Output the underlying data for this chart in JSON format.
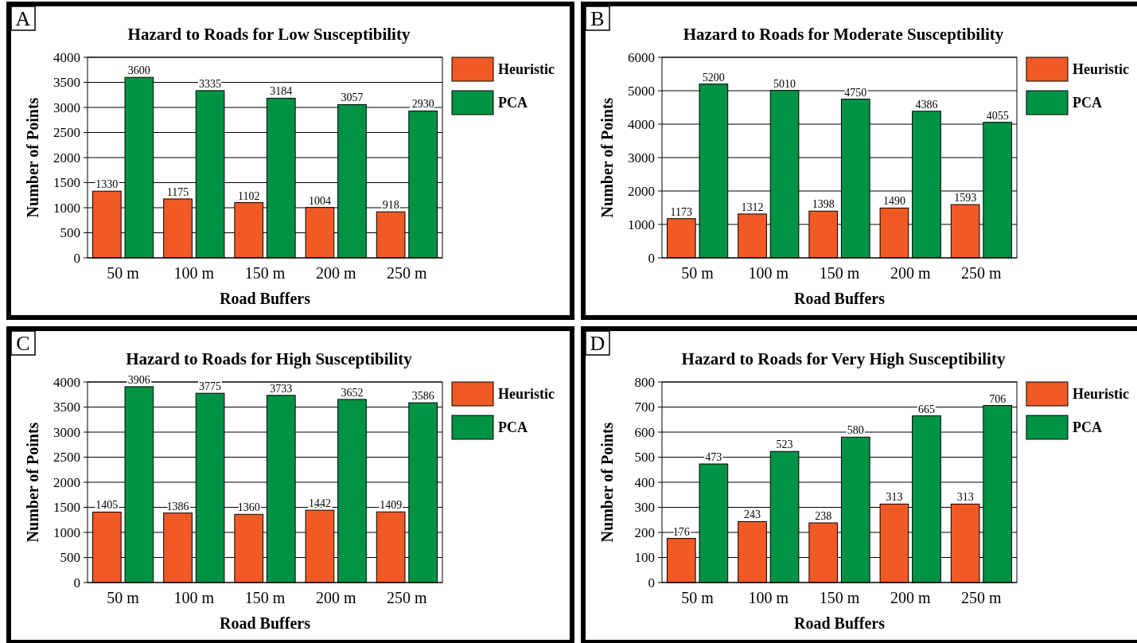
{
  "chart_data": [
    {
      "type": "bar",
      "title": "Hazard to Roads for Low Susceptibility",
      "xlabel": "Road Buffers",
      "ylabel": "Number of Points",
      "annotations": [
        "A"
      ],
      "categories": [
        "50 m",
        "100 m",
        "150 m",
        "200 m",
        "250 m"
      ],
      "series": [
        {
          "name": "Heuristic",
          "color": "#f15a24",
          "values": [
            1330,
            1175,
            1102,
            1004,
            918
          ]
        },
        {
          "name": "PCA",
          "color": "#009245",
          "values": [
            3600,
            3335,
            3184,
            3057,
            2930
          ]
        }
      ],
      "ylim": [
        0,
        4000
      ],
      "yticks": [
        0,
        500,
        1000,
        1500,
        2000,
        2500,
        3000,
        3500,
        4000
      ],
      "grid": "y",
      "legend": "top right",
      "data_labels": true
    },
    {
      "type": "bar",
      "title": "Hazard to Roads for Moderate Susceptibility",
      "xlabel": "Road Buffers",
      "ylabel": "Number of Points",
      "annotations": [
        "B"
      ],
      "categories": [
        "50 m",
        "100 m",
        "150 m",
        "200 m",
        "250 m"
      ],
      "series": [
        {
          "name": "Heuristic",
          "color": "#f15a24",
          "values": [
            1173,
            1312,
            1398,
            1490,
            1593
          ]
        },
        {
          "name": "PCA",
          "color": "#009245",
          "values": [
            5200,
            5010,
            4750,
            4386,
            4055
          ]
        }
      ],
      "ylim": [
        0,
        6000
      ],
      "yticks": [
        0,
        1000,
        2000,
        3000,
        4000,
        5000,
        6000
      ],
      "grid": "y",
      "legend": "top right",
      "data_labels": true
    },
    {
      "type": "bar",
      "title": "Hazard to Roads for High Susceptibility",
      "xlabel": "Road Buffers",
      "ylabel": "Number of Points",
      "annotations": [
        "C"
      ],
      "categories": [
        "50 m",
        "100 m",
        "150 m",
        "200 m",
        "250 m"
      ],
      "series": [
        {
          "name": "Heuristic",
          "color": "#f15a24",
          "values": [
            1405,
            1386,
            1360,
            1442,
            1409
          ]
        },
        {
          "name": "PCA",
          "color": "#009245",
          "values": [
            3906,
            3775,
            3733,
            3652,
            3586
          ]
        }
      ],
      "ylim": [
        0,
        4000
      ],
      "yticks": [
        0,
        500,
        1000,
        1500,
        2000,
        2500,
        3000,
        3500,
        4000
      ],
      "grid": "y",
      "legend": "top right",
      "data_labels": true
    },
    {
      "type": "bar",
      "title": "Hazard to Roads for Very High Susceptibility",
      "xlabel": "Road Buffers",
      "ylabel": "Number of Points",
      "annotations": [
        "D"
      ],
      "categories": [
        "50 m",
        "100 m",
        "150 m",
        "200 m",
        "250 m"
      ],
      "series": [
        {
          "name": "Heuristic",
          "color": "#f15a24",
          "values": [
            176,
            243,
            238,
            313,
            313
          ]
        },
        {
          "name": "PCA",
          "color": "#009245",
          "values": [
            473,
            523,
            580,
            665,
            706
          ]
        }
      ],
      "ylim": [
        0,
        800
      ],
      "yticks": [
        0,
        100,
        200,
        300,
        400,
        500,
        600,
        700,
        800
      ],
      "grid": "y",
      "legend": "top right",
      "data_labels": true
    }
  ]
}
